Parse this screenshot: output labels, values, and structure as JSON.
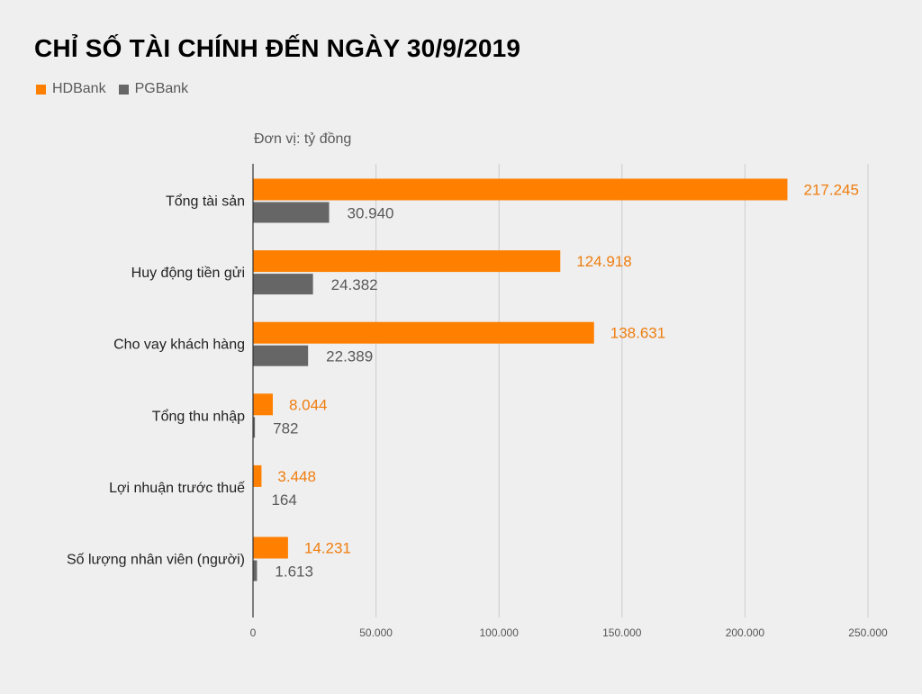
{
  "title": "CHỈ SỐ TÀI CHÍNH ĐẾN NGÀY 30/9/2019",
  "unit_label": "Đơn vị: tỷ đồng",
  "colors": {
    "HDBank": "#ff7f00",
    "PGBank": "#666666",
    "hdbank_label": "#ef7d0f",
    "pgbank_label": "#595959",
    "grid": "#cccccc",
    "axis": "#333333",
    "text": "#222222",
    "tick": "#555555"
  },
  "legend": [
    {
      "name": "HDBank",
      "color": "#ff7f00"
    },
    {
      "name": "PGBank",
      "color": "#666666"
    }
  ],
  "chart_data": {
    "type": "bar",
    "orientation": "horizontal",
    "categories": [
      "Tổng tài sản",
      "Huy động tiền gửi",
      "Cho vay khách hàng",
      "Tổng thu nhập",
      "Lợi nhuận trước thuế",
      "Số lượng nhân viên (người)"
    ],
    "series": [
      {
        "name": "HDBank",
        "values": [
          217245,
          124918,
          138631,
          8044,
          3448,
          14231
        ],
        "labels": [
          "217.245",
          "124.918",
          "138.631",
          "8.044",
          "3.448",
          "14.231"
        ]
      },
      {
        "name": "PGBank",
        "values": [
          30940,
          24382,
          22389,
          782,
          164,
          1613
        ],
        "labels": [
          "30.940",
          "24.382",
          "22.389",
          "782",
          "164",
          "1.613"
        ]
      }
    ],
    "xlim": [
      0,
      250000
    ],
    "xticks": [
      0,
      50000,
      100000,
      150000,
      200000,
      250000
    ],
    "xtick_labels": [
      "0",
      "50.000",
      "100.000",
      "150.000",
      "200.000",
      "250.000"
    ],
    "grid": true,
    "legend_position": "top-left"
  }
}
